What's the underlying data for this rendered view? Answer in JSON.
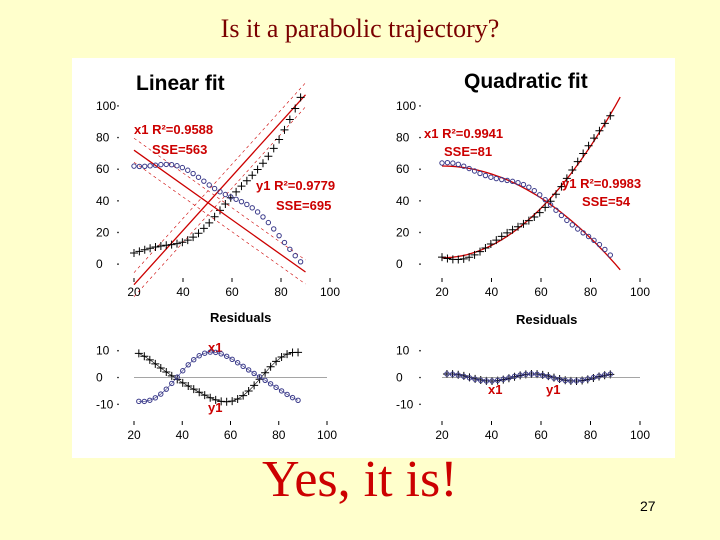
{
  "page": {
    "title": "Is it a parabolic trajectory?",
    "answer": "Yes, it is!",
    "page_number": "27"
  },
  "colors": {
    "x1": "#000000",
    "y1": "#3a3a8a",
    "fit_line": "#cc0000",
    "label": "#cc0000"
  },
  "chart_data": [
    {
      "type": "scatter",
      "title": "Linear fit",
      "xlabel": "Residuals",
      "xlim": [
        20,
        100
      ],
      "ylim": [
        -5,
        105
      ],
      "xticks": [
        "20",
        "40",
        "60",
        "80",
        "100"
      ],
      "yticks": [
        "0",
        "20",
        "40",
        "60",
        "80",
        "100"
      ],
      "series": [
        {
          "name": "x1",
          "fit": "linear",
          "r2_label": "x1 R²=0.9588",
          "sse_label": "SSE=563",
          "fit_line": [
            [
              20,
              -13
            ],
            [
              90,
              107
            ]
          ],
          "x_range": [
            20,
            88
          ],
          "shape": "parabola_up",
          "a": 7,
          "b": 103
        },
        {
          "name": "y1",
          "fit": "linear",
          "r2_label": "y1 R²=0.9779",
          "sse_label": "SSE=695",
          "fit_line": [
            [
              20,
              72
            ],
            [
              90,
              -5
            ]
          ],
          "x_range": [
            20,
            88
          ],
          "shape": "parabola_down",
          "a": 64,
          "b": -64
        }
      ]
    },
    {
      "type": "scatter",
      "title": "Quadratic fit",
      "xlabel": "Residuals",
      "xlim": [
        20,
        100
      ],
      "ylim": [
        -5,
        105
      ],
      "xticks": [
        "20",
        "40",
        "60",
        "80",
        "100"
      ],
      "yticks": [
        "0",
        "20",
        "40",
        "60",
        "80",
        "100"
      ],
      "series": [
        {
          "name": "x1",
          "fit": "quadratic",
          "r2_label": "x1 R²=0.9941",
          "sse_label": "SSE=81",
          "x_range": [
            20,
            88
          ],
          "shape": "parabola_up",
          "a": 4,
          "b": 96
        },
        {
          "name": "y1",
          "fit": "quadratic",
          "r2_label": "y1 R²=0.9983",
          "sse_label": "SSE=54",
          "x_range": [
            20,
            88
          ],
          "shape": "parabola_down",
          "a": 62,
          "b": -62
        }
      ]
    },
    {
      "type": "scatter",
      "title": "",
      "xlabel": "",
      "xlim": [
        20,
        100
      ],
      "ylim": [
        -14,
        14
      ],
      "xticks": [
        "20",
        "40",
        "60",
        "80",
        "100"
      ],
      "yticks": [
        "10",
        "0",
        "-10"
      ],
      "series": [
        {
          "name": "x1",
          "label": "x1",
          "residual_amp": 9
        },
        {
          "name": "y1",
          "label": "y1",
          "residual_amp": -9
        }
      ]
    },
    {
      "type": "scatter",
      "title": "",
      "xlabel": "",
      "xlim": [
        20,
        100
      ],
      "ylim": [
        -14,
        14
      ],
      "xticks": [
        "20",
        "40",
        "60",
        "80",
        "100"
      ],
      "yticks": [
        "10",
        "0",
        "-10"
      ],
      "series": [
        {
          "name": "x1",
          "label": "x1",
          "residual_amp": 0
        },
        {
          "name": "y1",
          "label": "y1",
          "residual_amp": 0
        }
      ]
    }
  ]
}
